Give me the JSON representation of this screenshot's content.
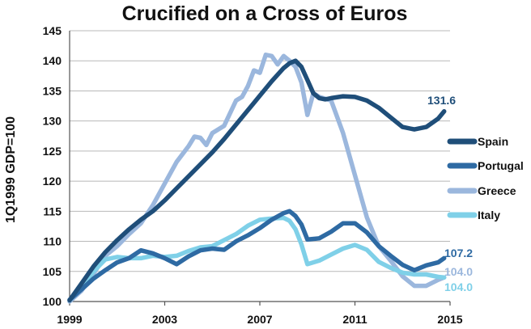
{
  "chart_data": {
    "type": "line",
    "title": "Crucified on a Cross of Euros",
    "xlabel": "",
    "ylabel": "1Q1999 GDP=100",
    "xlim": [
      1999,
      2015
    ],
    "ylim": [
      100,
      145
    ],
    "x_ticks": [
      "1999",
      "2003",
      "2007",
      "2011",
      "2015"
    ],
    "y_ticks": [
      "100",
      "105",
      "110",
      "115",
      "120",
      "125",
      "130",
      "135",
      "140",
      "145"
    ],
    "grid": true,
    "legend_position": "right",
    "series": [
      {
        "name": "Spain",
        "color": "#1f4e79",
        "x": [
          1999,
          1999.5,
          2000,
          2000.5,
          2001,
          2001.5,
          2002,
          2002.5,
          2003,
          2003.5,
          2004,
          2004.5,
          2005,
          2005.5,
          2006,
          2006.5,
          2007,
          2007.5,
          2008,
          2008.25,
          2008.5,
          2008.75,
          2009,
          2009.25,
          2009.5,
          2009.75,
          2010,
          2010.5,
          2011,
          2011.5,
          2012,
          2012.5,
          2013,
          2013.5,
          2014,
          2014.5,
          2014.75
        ],
        "values": [
          100.2,
          103.0,
          105.8,
          108.2,
          110.2,
          112.0,
          113.6,
          115.0,
          116.8,
          118.8,
          120.8,
          122.8,
          124.8,
          127.0,
          129.4,
          131.8,
          134.2,
          136.6,
          138.8,
          139.6,
          140.0,
          139.0,
          136.8,
          134.6,
          133.8,
          133.6,
          133.8,
          134.1,
          134.0,
          133.4,
          132.2,
          130.6,
          129.0,
          128.6,
          129.0,
          130.4,
          131.6
        ],
        "end_label": "131.6"
      },
      {
        "name": "Portugal",
        "color": "#2e6aa3",
        "x": [
          1999,
          1999.5,
          2000,
          2000.5,
          2001,
          2001.5,
          2002,
          2002.5,
          2003,
          2003.5,
          2004,
          2004.5,
          2005,
          2005.5,
          2006,
          2006.5,
          2007,
          2007.5,
          2008,
          2008.25,
          2008.5,
          2008.75,
          2009,
          2009.5,
          2010,
          2010.5,
          2011,
          2011.5,
          2012,
          2012.5,
          2013,
          2013.5,
          2014,
          2014.5,
          2014.75
        ],
        "values": [
          100.3,
          102.0,
          103.8,
          105.2,
          106.5,
          107.2,
          108.5,
          108.0,
          107.2,
          106.2,
          107.5,
          108.5,
          108.8,
          108.6,
          110.0,
          111.0,
          112.2,
          113.6,
          114.7,
          115.0,
          114.2,
          112.8,
          110.3,
          110.5,
          111.6,
          113.0,
          113.0,
          111.5,
          109.2,
          107.6,
          106.1,
          105.2,
          106.0,
          106.5,
          107.2
        ],
        "end_label": "107.2"
      },
      {
        "name": "Greece",
        "color": "#9bb7dd",
        "x": [
          1999,
          1999.5,
          2000,
          2000.5,
          2001,
          2001.5,
          2002,
          2002.5,
          2003,
          2003.5,
          2004,
          2004.25,
          2004.5,
          2004.75,
          2005,
          2005.5,
          2006,
          2006.25,
          2006.5,
          2006.75,
          2007,
          2007.25,
          2007.5,
          2007.75,
          2008,
          2008.25,
          2008.5,
          2008.75,
          2009,
          2009.25,
          2009.5,
          2010,
          2010.5,
          2011,
          2011.5,
          2012,
          2012.5,
          2013,
          2013.5,
          2014,
          2014.5,
          2014.75
        ],
        "values": [
          100.0,
          101.8,
          104.6,
          107.6,
          109.2,
          111.2,
          113.0,
          116.0,
          119.6,
          123.2,
          125.8,
          127.4,
          127.2,
          126.0,
          128.0,
          129.2,
          133.4,
          134.0,
          135.8,
          138.4,
          138.0,
          141.0,
          140.8,
          139.4,
          140.8,
          140.0,
          139.0,
          136.4,
          131.0,
          134.6,
          134.0,
          133.4,
          128.0,
          121.0,
          114.0,
          109.2,
          106.8,
          104.2,
          102.6,
          102.6,
          103.6,
          104.0
        ],
        "end_label": "104.0"
      },
      {
        "name": "Italy",
        "color": "#7fd0e8",
        "x": [
          1999,
          1999.5,
          2000,
          2000.5,
          2001,
          2001.5,
          2002,
          2002.5,
          2003,
          2003.5,
          2004,
          2004.5,
          2005,
          2005.5,
          2006,
          2006.5,
          2007,
          2007.5,
          2008,
          2008.25,
          2008.5,
          2008.75,
          2009,
          2009.5,
          2010,
          2010.5,
          2011,
          2011.5,
          2012,
          2012.5,
          2013,
          2013.5,
          2014,
          2014.5,
          2014.75
        ],
        "values": [
          100.2,
          102.3,
          105.0,
          107.0,
          107.4,
          107.2,
          107.2,
          107.6,
          107.4,
          107.6,
          108.4,
          109.0,
          109.2,
          110.2,
          111.2,
          112.6,
          113.6,
          113.8,
          113.9,
          113.4,
          112.0,
          109.5,
          106.2,
          106.8,
          107.8,
          108.8,
          109.4,
          108.6,
          106.6,
          105.6,
          104.8,
          104.5,
          104.5,
          104.1,
          104.0
        ],
        "end_label": "104.0"
      }
    ]
  }
}
